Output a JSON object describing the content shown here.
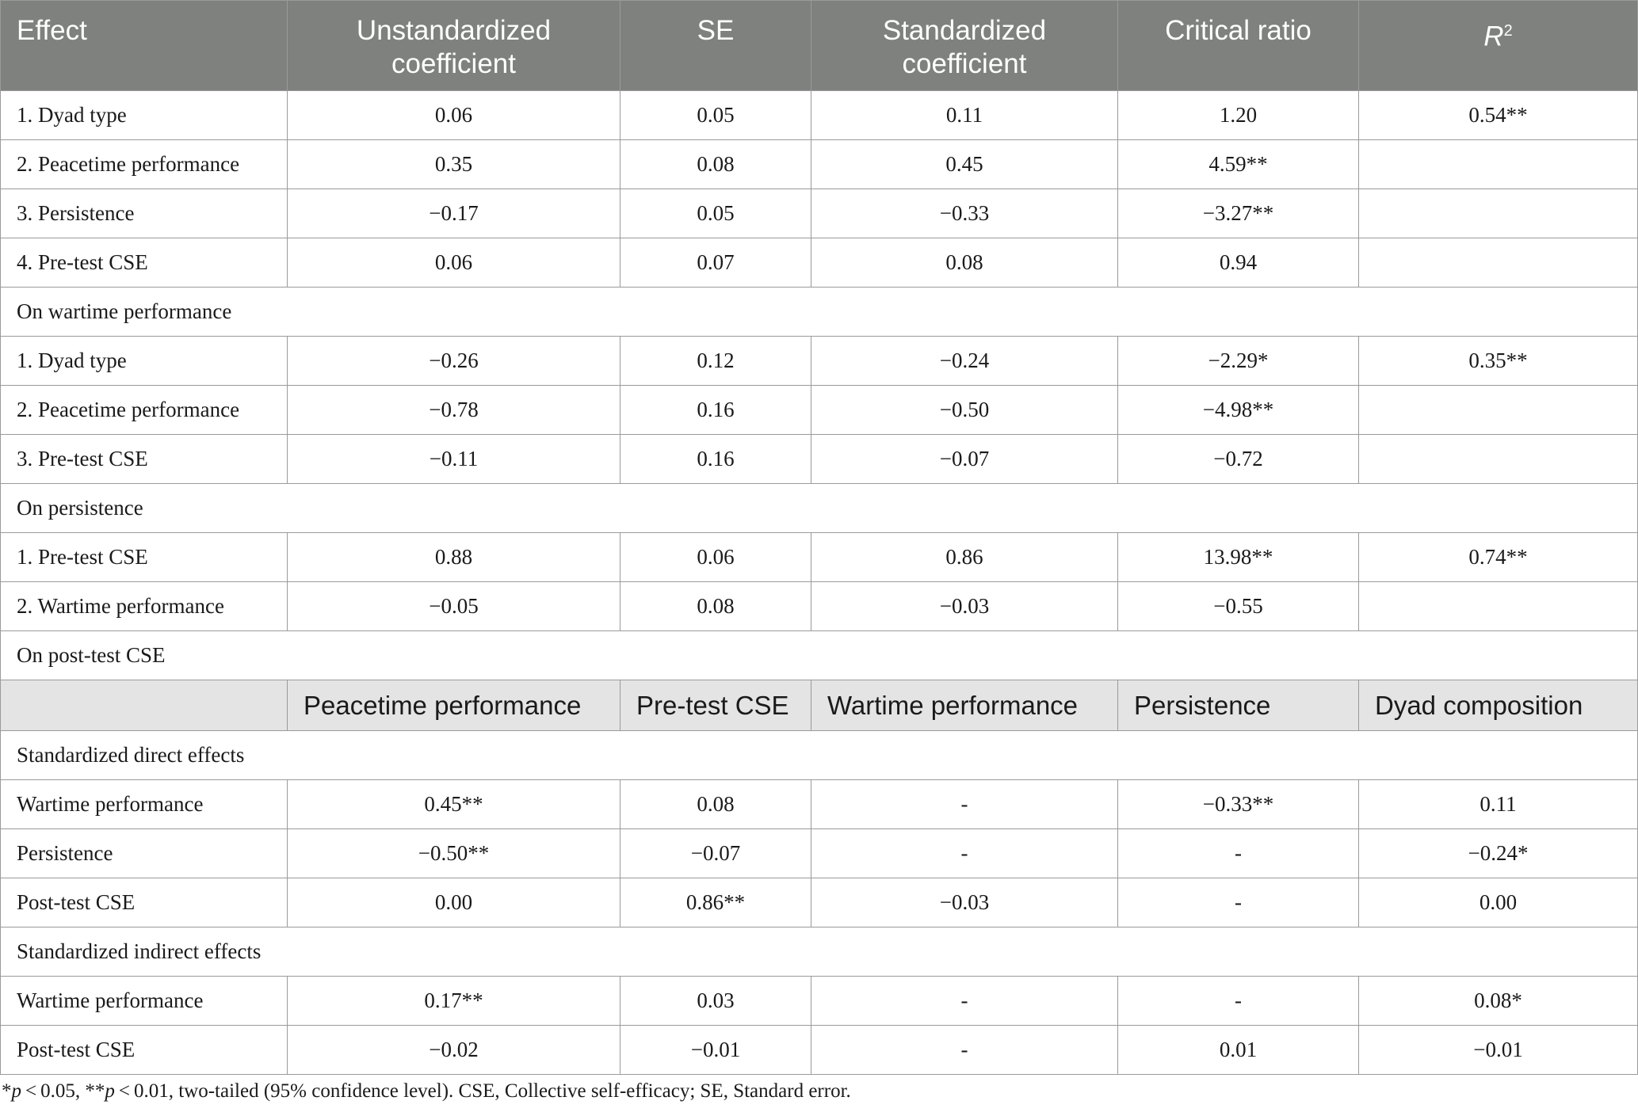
{
  "header": {
    "effect": "Effect",
    "unstd_line1": "Unstandardized",
    "unstd_line2": "coefficient",
    "se": "SE",
    "std_line1": "Standardized",
    "std_line2": "coefficient",
    "critical_ratio": "Critical ratio",
    "r2_letter": "R",
    "r2_sup": "2"
  },
  "block1": [
    {
      "label": "1. Dyad type",
      "unstd": "0.06",
      "se": "0.05",
      "std": "0.11",
      "cr": "1.20",
      "r2": "0.54**"
    },
    {
      "label": "2. Peacetime performance",
      "unstd": "0.35",
      "se": "0.08",
      "std": "0.45",
      "cr": "4.59**",
      "r2": ""
    },
    {
      "label": "3. Persistence",
      "unstd": "−0.17",
      "se": "0.05",
      "std": "−0.33",
      "cr": "−3.27**",
      "r2": ""
    },
    {
      "label": "4. Pre-test CSE",
      "unstd": "0.06",
      "se": "0.07",
      "std": "0.08",
      "cr": "0.94",
      "r2": ""
    }
  ],
  "section1": "On wartime performance",
  "block2": [
    {
      "label": "1. Dyad type",
      "unstd": "−0.26",
      "se": "0.12",
      "std": "−0.24",
      "cr": "−2.29*",
      "r2": "0.35**"
    },
    {
      "label": "2. Peacetime performance",
      "unstd": "−0.78",
      "se": "0.16",
      "std": "−0.50",
      "cr": "−4.98**",
      "r2": ""
    },
    {
      "label": "3. Pre-test CSE",
      "unstd": "−0.11",
      "se": "0.16",
      "std": "−0.07",
      "cr": "−0.72",
      "r2": ""
    }
  ],
  "section2": "On persistence",
  "block3": [
    {
      "label": "1. Pre-test CSE",
      "unstd": "0.88",
      "se": "0.06",
      "std": "0.86",
      "cr": "13.98**",
      "r2": "0.74**"
    },
    {
      "label": "2. Wartime performance",
      "unstd": "−0.05",
      "se": "0.08",
      "std": "−0.03",
      "cr": "−0.55",
      "r2": ""
    }
  ],
  "section3": "On post-test CSE",
  "subheader": {
    "c1": "Peacetime performance",
    "c2": "Pre-test CSE",
    "c3": "Wartime performance",
    "c4": "Persistence",
    "c5": "Dyad composition"
  },
  "section4": "Standardized direct effects",
  "direct": [
    {
      "label": "Wartime performance",
      "v1": "0.45**",
      "v2": "0.08",
      "v3": "-",
      "v4": "−0.33**",
      "v5": "0.11"
    },
    {
      "label": "Persistence",
      "v1": "−0.50**",
      "v2": "−0.07",
      "v3": "-",
      "v4": "-",
      "v5": "−0.24*"
    },
    {
      "label": "Post-test CSE",
      "v1": "0.00",
      "v2": "0.86**",
      "v3": "−0.03",
      "v4": "-",
      "v5": "0.00"
    }
  ],
  "section5": "Standardized indirect effects",
  "indirect": [
    {
      "label": "Wartime performance",
      "v1": "0.17**",
      "v2": "0.03",
      "v3": "-",
      "v4": "-",
      "v5": "0.08*"
    },
    {
      "label": "Post-test CSE",
      "v1": "−0.02",
      "v2": "−0.01",
      "v3": "-",
      "v4": "0.01",
      "v5": "−0.01"
    }
  ],
  "footnote": {
    "star1": "*",
    "p1": "p",
    "lt1": " < 0.05, **",
    "p2": "p",
    "rest": " < 0.01, two-tailed (95% confidence level). CSE, Collective self-efficacy; SE, Standard error."
  }
}
